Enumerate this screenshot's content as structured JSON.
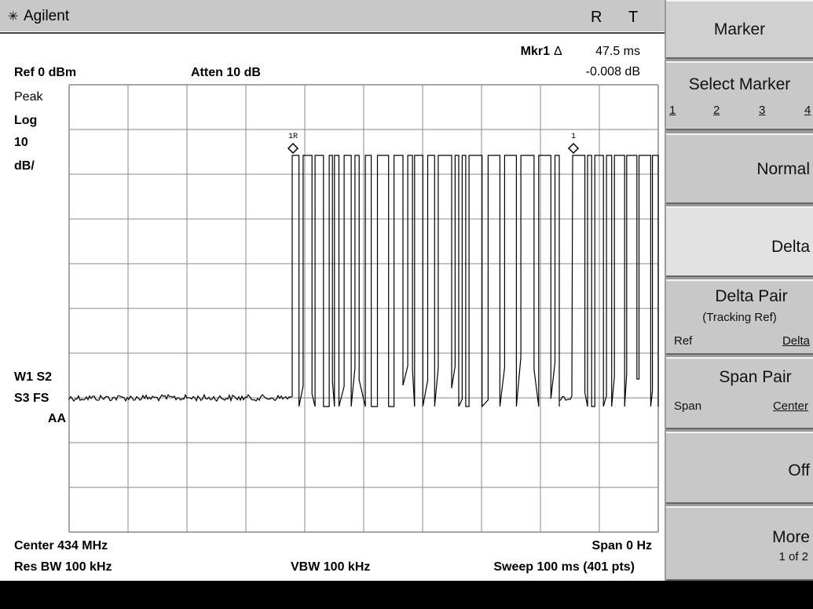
{
  "header": {
    "brand": "Agilent",
    "indicators": [
      "R",
      "T"
    ]
  },
  "marker_readout": {
    "label": "Mkr1",
    "symbol": "Δ",
    "time": "47.5 ms",
    "level": "-0.008 dB"
  },
  "ref_level": "Ref 0 dBm",
  "atten": "Atten 10 dB",
  "left_annotations": [
    "Peak",
    "Log",
    "10",
    "dB/"
  ],
  "status": [
    "W1 S2",
    "S3 FS",
    "AA"
  ],
  "markers": [
    "1R",
    "1"
  ],
  "footer": {
    "center": "Center 434 MHz",
    "span": "Span 0 Hz",
    "res_bw": "Res BW 100 kHz",
    "vbw": "VBW 100 kHz",
    "sweep": "Sweep 100 ms (401 pts)"
  },
  "softkeys": {
    "title": "Marker",
    "keys": [
      {
        "label": "Select Marker",
        "options": [
          "1",
          "2",
          "3",
          "4"
        ]
      },
      {
        "label": "Normal"
      },
      {
        "label": "Delta"
      },
      {
        "label": "Delta Pair",
        "sublabel": "(Tracking Ref)",
        "left": "Ref",
        "right": "Delta"
      },
      {
        "label": "Span Pair",
        "left": "Span",
        "right": "Center"
      },
      {
        "label": "Off"
      },
      {
        "label": "More",
        "sublabel": "1 of 2"
      }
    ]
  }
}
